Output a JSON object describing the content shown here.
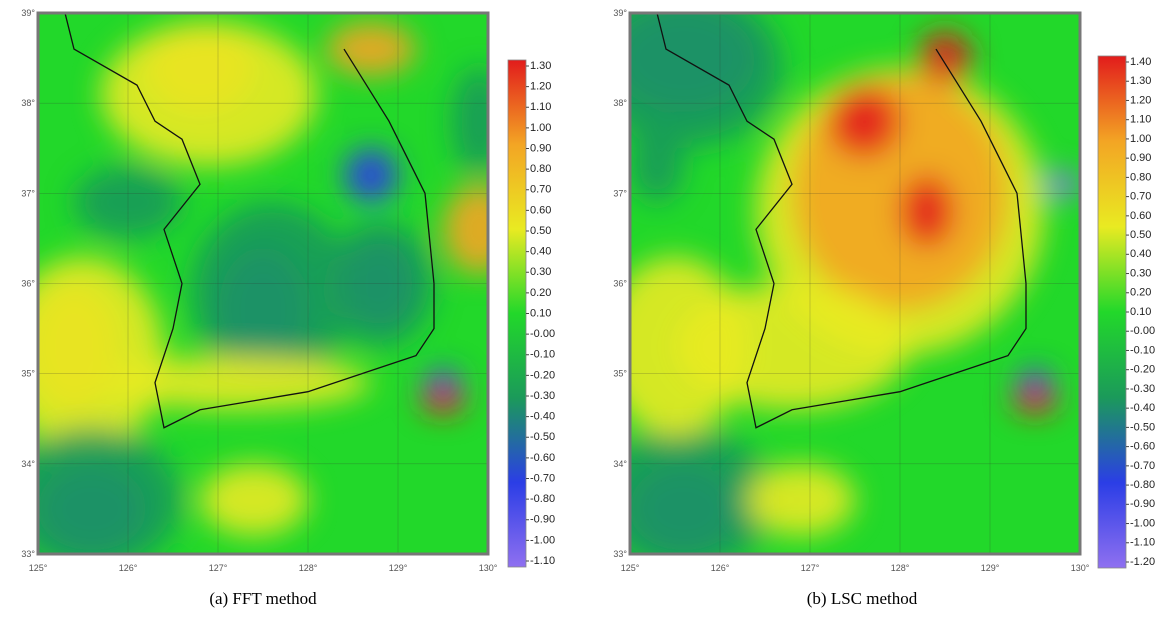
{
  "chart_data": [
    {
      "type": "contour-map",
      "caption": "(a) FFT method",
      "xlim": [
        125,
        130
      ],
      "ylim": [
        33,
        39
      ],
      "xticks": [
        {
          "value": 125,
          "label": "125°"
        },
        {
          "value": 126,
          "label": "126°"
        },
        {
          "value": 127,
          "label": "127°"
        },
        {
          "value": 128,
          "label": "128°"
        },
        {
          "value": 129,
          "label": "129°"
        },
        {
          "value": 130,
          "label": "130°"
        }
      ],
      "yticks": [
        {
          "value": 33,
          "label": "33°"
        },
        {
          "value": 34,
          "label": "34°"
        },
        {
          "value": 35,
          "label": "35°"
        },
        {
          "value": 36,
          "label": "36°"
        },
        {
          "value": 37,
          "label": "37°"
        },
        {
          "value": 38,
          "label": "38°"
        },
        {
          "value": 39,
          "label": "39°"
        }
      ],
      "colormap": [
        "#8f70f0",
        "#2b3ee6",
        "#1b9a5a",
        "#22d82a",
        "#e9ea22",
        "#f3a524",
        "#e21c1c"
      ],
      "clim": [
        -1.1,
        1.3
      ],
      "cticks": [
        {
          "value": 1.3,
          "label": "1.30"
        },
        {
          "value": 1.2,
          "label": "1.20"
        },
        {
          "value": 1.1,
          "label": "1.10"
        },
        {
          "value": 1.0,
          "label": "1.00"
        },
        {
          "value": 0.9,
          "label": "0.90"
        },
        {
          "value": 0.8,
          "label": "0.80"
        },
        {
          "value": 0.7,
          "label": "0.70"
        },
        {
          "value": 0.6,
          "label": "0.60"
        },
        {
          "value": 0.5,
          "label": "0.50"
        },
        {
          "value": 0.4,
          "label": "0.40"
        },
        {
          "value": 0.3,
          "label": "0.30"
        },
        {
          "value": 0.2,
          "label": "0.20"
        },
        {
          "value": 0.1,
          "label": "0.10"
        },
        {
          "value": 0,
          "label": "-0.00"
        },
        {
          "value": -0.1,
          "label": "-0.10"
        },
        {
          "value": -0.2,
          "label": "-0.20"
        },
        {
          "value": -0.3,
          "label": "-0.30"
        },
        {
          "value": -0.4,
          "label": "-0.40"
        },
        {
          "value": -0.5,
          "label": "-0.50"
        },
        {
          "value": -0.6,
          "label": "-0.60"
        },
        {
          "value": -0.7,
          "label": "-0.70"
        },
        {
          "value": -0.8,
          "label": "-0.80"
        },
        {
          "value": -0.9,
          "label": "-0.90"
        },
        {
          "value": -1.0,
          "label": "-1.00"
        },
        {
          "value": -1.1,
          "label": "-1.10"
        }
      ]
    },
    {
      "type": "contour-map",
      "caption": "(b) LSC method",
      "xlim": [
        125,
        130
      ],
      "ylim": [
        33,
        39
      ],
      "xticks": [
        {
          "value": 125,
          "label": "125°"
        },
        {
          "value": 126,
          "label": "126°"
        },
        {
          "value": 127,
          "label": "127°"
        },
        {
          "value": 128,
          "label": "128°"
        },
        {
          "value": 129,
          "label": "129°"
        },
        {
          "value": 130,
          "label": "130°"
        }
      ],
      "yticks": [
        {
          "value": 33,
          "label": "33°"
        },
        {
          "value": 34,
          "label": "34°"
        },
        {
          "value": 35,
          "label": "35°"
        },
        {
          "value": 36,
          "label": "36°"
        },
        {
          "value": 37,
          "label": "37°"
        },
        {
          "value": 38,
          "label": "38°"
        },
        {
          "value": 39,
          "label": "39°"
        }
      ],
      "colormap": [
        "#8f70f0",
        "#2b3ee6",
        "#1b9a5a",
        "#22d82a",
        "#e9ea22",
        "#f3a524",
        "#e21c1c"
      ],
      "clim": [
        -1.2,
        1.4
      ],
      "cticks": [
        {
          "value": 1.4,
          "label": "1.40"
        },
        {
          "value": 1.3,
          "label": "1.30"
        },
        {
          "value": 1.2,
          "label": "1.20"
        },
        {
          "value": 1.1,
          "label": "1.10"
        },
        {
          "value": 1.0,
          "label": "1.00"
        },
        {
          "value": 0.9,
          "label": "0.90"
        },
        {
          "value": 0.8,
          "label": "0.80"
        },
        {
          "value": 0.7,
          "label": "0.70"
        },
        {
          "value": 0.6,
          "label": "0.60"
        },
        {
          "value": 0.5,
          "label": "0.50"
        },
        {
          "value": 0.4,
          "label": "0.40"
        },
        {
          "value": 0.3,
          "label": "0.30"
        },
        {
          "value": 0.2,
          "label": "0.20"
        },
        {
          "value": 0.1,
          "label": "0.10"
        },
        {
          "value": 0,
          "label": "-0.00"
        },
        {
          "value": -0.1,
          "label": "-0.10"
        },
        {
          "value": -0.2,
          "label": "-0.20"
        },
        {
          "value": -0.3,
          "label": "-0.30"
        },
        {
          "value": -0.4,
          "label": "-0.40"
        },
        {
          "value": -0.5,
          "label": "-0.50"
        },
        {
          "value": -0.6,
          "label": "-0.60"
        },
        {
          "value": -0.7,
          "label": "-0.70"
        },
        {
          "value": -0.8,
          "label": "-0.80"
        },
        {
          "value": -0.9,
          "label": "-0.90"
        },
        {
          "value": -1.0,
          "label": "-1.00"
        },
        {
          "value": -1.1,
          "label": "-1.10"
        },
        {
          "value": -1.2,
          "label": "-1.20"
        }
      ]
    }
  ]
}
